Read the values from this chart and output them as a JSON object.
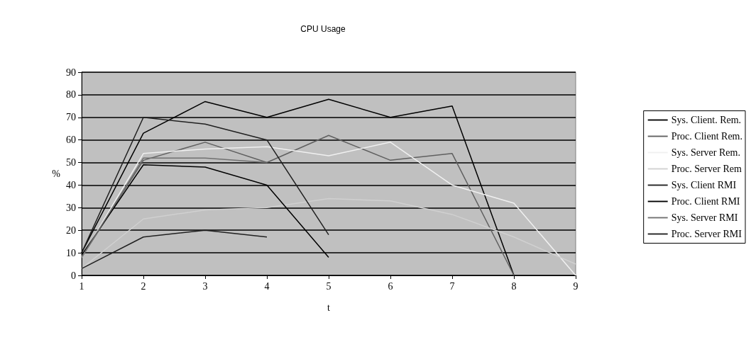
{
  "chart_data": {
    "type": "line",
    "title": "CPU Usage",
    "xlabel": "t",
    "ylabel": "%",
    "categories": [
      "1",
      "2",
      "3",
      "4",
      "5",
      "6",
      "7",
      "8",
      "9"
    ],
    "ylim": [
      0,
      90
    ],
    "yticks": [
      0,
      10,
      20,
      30,
      40,
      50,
      60,
      70,
      80,
      90
    ],
    "grid": "y",
    "legend": "right",
    "marker": "none",
    "line_style": "solid",
    "series": [
      {
        "name": "Sys. Client. Rem.",
        "color": "#000000",
        "values": [
          10,
          63,
          77,
          70,
          78,
          70,
          75,
          0,
          null
        ]
      },
      {
        "name": "Proc. Client Rem.",
        "color": "#606060",
        "values": [
          8,
          51,
          59,
          50,
          62,
          51,
          54,
          0,
          null
        ]
      },
      {
        "name": "Sys. Server Rem.",
        "color": "#f0f0f0",
        "values": [
          8,
          54,
          56,
          57,
          53,
          59,
          40,
          32,
          0
        ]
      },
      {
        "name": "Proc. Server Rem",
        "color": "#d0d0d0",
        "values": [
          3,
          25,
          29,
          30,
          34,
          33,
          27,
          17,
          5
        ]
      },
      {
        "name": "Sys. Client RMI",
        "color": "#202020",
        "values": [
          10,
          70,
          67,
          60,
          18,
          null,
          null,
          null,
          null
        ]
      },
      {
        "name": "Proc. Client RMI",
        "color": "#000000",
        "values": [
          9,
          49,
          48,
          40,
          8,
          null,
          null,
          null,
          null
        ]
      },
      {
        "name": "Sys. Server RMI",
        "color": "#707070",
        "values": [
          8,
          52,
          52,
          50,
          null,
          null,
          null,
          null,
          null
        ]
      },
      {
        "name": "Proc. Server RMI",
        "color": "#202020",
        "values": [
          3,
          17,
          20,
          17,
          null,
          null,
          null,
          null,
          null
        ]
      }
    ]
  }
}
